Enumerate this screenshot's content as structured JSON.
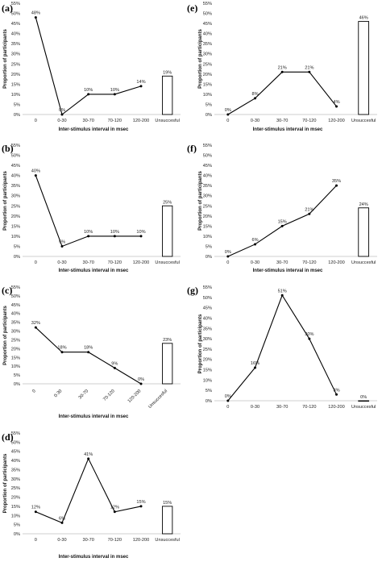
{
  "chart_data": [
    {
      "panel_label": "(a)",
      "type": "line",
      "categories": [
        "0",
        "0-30",
        "30-70",
        "70-120",
        "120-200"
      ],
      "values": [
        48,
        0,
        10,
        10,
        14
      ],
      "value_labels": [
        "48%",
        "0%",
        "10%",
        "10%",
        "14%"
      ],
      "extra_bar": {
        "category": "Unsuccesful",
        "value": 19,
        "label": "19%"
      },
      "yticks": [
        "0%",
        "5%",
        "10%",
        "15%",
        "20%",
        "25%",
        "30%",
        "35%",
        "40%",
        "45%",
        "50%",
        "55%"
      ],
      "ylim": [
        0,
        55
      ],
      "xlabel": "Inter-stimulus interval in msec",
      "ylabel": "Proportion of participants"
    },
    {
      "panel_label": "(b)",
      "type": "line",
      "categories": [
        "0",
        "0-30",
        "30-70",
        "70-120",
        "120-200"
      ],
      "values": [
        40,
        5,
        10,
        10,
        10
      ],
      "value_labels": [
        "40%",
        "5%",
        "10%",
        "10%",
        "10%"
      ],
      "extra_bar": {
        "category": "Unsuccesful",
        "value": 25,
        "label": "25%"
      },
      "yticks": [
        "0%",
        "5%",
        "10%",
        "15%",
        "20%",
        "25%",
        "30%",
        "35%",
        "40%",
        "45%",
        "50%",
        "55%"
      ],
      "ylim": [
        0,
        55
      ],
      "xlabel": "Inter-stimulus interval in msec",
      "ylabel": "Proportion of participants"
    },
    {
      "panel_label": "(c)",
      "type": "line",
      "categories": [
        "0",
        "0-30",
        "30-70",
        "70-120",
        "120-200"
      ],
      "values": [
        32,
        18,
        18,
        9,
        0
      ],
      "value_labels": [
        "32%",
        "18%",
        "18%",
        "9%",
        "0%"
      ],
      "extra_bar": {
        "category": "Unsuccesful",
        "value": 23,
        "label": "23%"
      },
      "yticks": [
        "0%",
        "5%",
        "10%",
        "15%",
        "20%",
        "25%",
        "30%",
        "35%",
        "40%",
        "45%",
        "50%",
        "55%"
      ],
      "ylim": [
        0,
        55
      ],
      "xlabel": "Inter-stimulus interval in msec",
      "ylabel": "Proportion of participants",
      "rotated_ticks": true
    },
    {
      "panel_label": "(d)",
      "type": "line",
      "categories": [
        "0",
        "0-30",
        "30-70",
        "70-120",
        "120-200"
      ],
      "values": [
        12,
        6,
        41,
        12,
        15
      ],
      "value_labels": [
        "12%",
        "6%",
        "41%",
        "12%",
        "15%"
      ],
      "extra_bar": {
        "category": "Unsuccesful",
        "value": 15,
        "label": "15%"
      },
      "yticks": [
        "0%",
        "5%",
        "10%",
        "15%",
        "20%",
        "25%",
        "30%",
        "35%",
        "40%",
        "45%",
        "50%",
        "55%"
      ],
      "ylim": [
        0,
        55
      ],
      "xlabel": "Inter-stimulus interval in msec",
      "ylabel": "Proportion of participants"
    },
    {
      "panel_label": "(e)",
      "type": "line",
      "categories": [
        "0",
        "0-30",
        "30-70",
        "70-120",
        "120-200"
      ],
      "values": [
        0,
        8,
        21,
        21,
        4
      ],
      "value_labels": [
        "0%",
        "8%",
        "21%",
        "21%",
        "4%"
      ],
      "extra_bar": {
        "category": "Unsuccesful",
        "value": 46,
        "label": "46%"
      },
      "yticks": [
        "0%",
        "5%",
        "10%",
        "15%",
        "20%",
        "25%",
        "30%",
        "35%",
        "40%",
        "45%",
        "50%",
        "55%"
      ],
      "ylim": [
        0,
        55
      ],
      "xlabel": "Inter-stimulus interval in msec",
      "ylabel": "Proportion of participants"
    },
    {
      "panel_label": "(f)",
      "type": "line",
      "categories": [
        "0",
        "0-30",
        "30-70",
        "70-120",
        "120-200"
      ],
      "values": [
        0,
        6,
        15,
        21,
        35
      ],
      "value_labels": [
        "0%",
        "6%",
        "15%",
        "21%",
        "35%"
      ],
      "extra_bar": {
        "category": "Unsuccesful",
        "value": 24,
        "label": "24%"
      },
      "yticks": [
        "0%",
        "5%",
        "10%",
        "15%",
        "20%",
        "25%",
        "30%",
        "35%",
        "40%",
        "45%",
        "50%",
        "55%"
      ],
      "ylim": [
        0,
        55
      ],
      "xlabel": "Inter-stimulus interval in msec",
      "ylabel": "Proportion of participants"
    },
    {
      "panel_label": "(g)",
      "type": "line",
      "categories": [
        "0",
        "0-30",
        "30-70",
        "70-120",
        "120-200"
      ],
      "values": [
        0,
        16,
        51,
        30,
        3
      ],
      "value_labels": [
        "0%",
        "16%",
        "51%",
        "30%",
        "3%"
      ],
      "extra_bar": {
        "category": "Unsuccesful",
        "value": 0,
        "label": "0%"
      },
      "yticks": [
        "0%",
        "5%",
        "10%",
        "15%",
        "20%",
        "25%",
        "30%",
        "35%",
        "40%",
        "45%",
        "50%",
        "55%"
      ],
      "ylim": [
        0,
        55
      ],
      "xlabel": "",
      "ylabel": "Proportion of participants"
    }
  ]
}
